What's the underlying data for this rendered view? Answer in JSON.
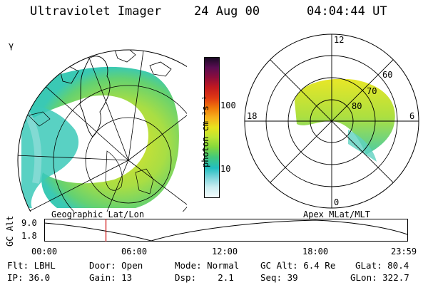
{
  "header": {
    "title": "Ultraviolet Imager",
    "date": "24 Aug 00",
    "time": "04:04:44 UT"
  },
  "left_panel": {
    "corner_label": "γ",
    "caption": "Geographic Lat/Lon"
  },
  "right_panel": {
    "caption": "Apex MLat/MLT",
    "mlt_labels": {
      "top": "12",
      "left": "18",
      "right": "6",
      "bottom": "0"
    },
    "lat_labels": [
      "60",
      "70",
      "80"
    ]
  },
  "colorbar": {
    "unit_label": "photon cm⁻²s⁻¹",
    "tick_labels": [
      "100",
      "10"
    ],
    "colors": [
      "#1a0a25",
      "#5a0d52",
      "#8b0d3c",
      "#c01820",
      "#e03a12",
      "#f07a0a",
      "#f6b21c",
      "#e8e31e",
      "#bce534",
      "#84d83c",
      "#44c97a",
      "#22bfc0",
      "#7fd6dc",
      "#cdeff2",
      "#f4fcfd"
    ]
  },
  "altitude_plot": {
    "y_axis_label": "GC Alt",
    "y_ticks": [
      "9.0",
      "1.8"
    ],
    "x_ticks": [
      "00:00",
      "06:00",
      "12:00",
      "18:00",
      "23:59"
    ],
    "marker_time_hours": 4.08,
    "marker_color": "#cc0000"
  },
  "status": {
    "row1": {
      "flt": "Flt: LBHL",
      "door": "Door: Open",
      "mode": "Mode: Normal",
      "gc_alt": "GC Alt: 6.4 Re",
      "glat": "GLat: 80.4"
    },
    "row2": {
      "ip": "IP: 36.0",
      "gain": "Gain: 13",
      "dsp": "Dsp:    2.1",
      "seq": "Seq: 39",
      "glon": "GLon: 322.7"
    }
  }
}
